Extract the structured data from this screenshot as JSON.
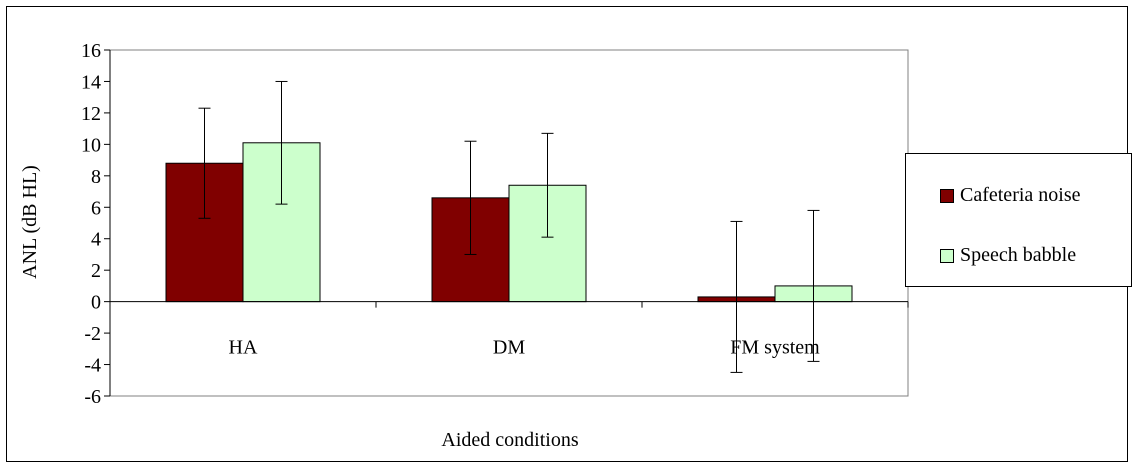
{
  "chart_data": {
    "type": "bar",
    "title": "",
    "xlabel": "Aided conditions",
    "ylabel": "ANL (dB HL)",
    "categories": [
      "HA",
      "DM",
      "FM system"
    ],
    "series": [
      {
        "name": "Cafeteria noise",
        "color": "#800000",
        "values": [
          8.8,
          6.6,
          0.3
        ],
        "error": [
          3.5,
          3.6,
          4.8
        ]
      },
      {
        "name": "Speech babble",
        "color": "#ccffcc",
        "values": [
          10.1,
          7.4,
          1.0
        ],
        "error": [
          3.9,
          3.3,
          4.8
        ]
      }
    ],
    "ylim": [
      -6,
      16
    ],
    "yticks": [
      -6,
      -4,
      -2,
      0,
      2,
      4,
      6,
      8,
      10,
      12,
      14,
      16
    ],
    "ytick_labels": [
      "-6",
      "-4",
      "-2",
      "0",
      "2",
      "4",
      "6",
      "8",
      "10",
      "12",
      "14",
      "16"
    ],
    "grid": false,
    "legend_position": "right"
  }
}
